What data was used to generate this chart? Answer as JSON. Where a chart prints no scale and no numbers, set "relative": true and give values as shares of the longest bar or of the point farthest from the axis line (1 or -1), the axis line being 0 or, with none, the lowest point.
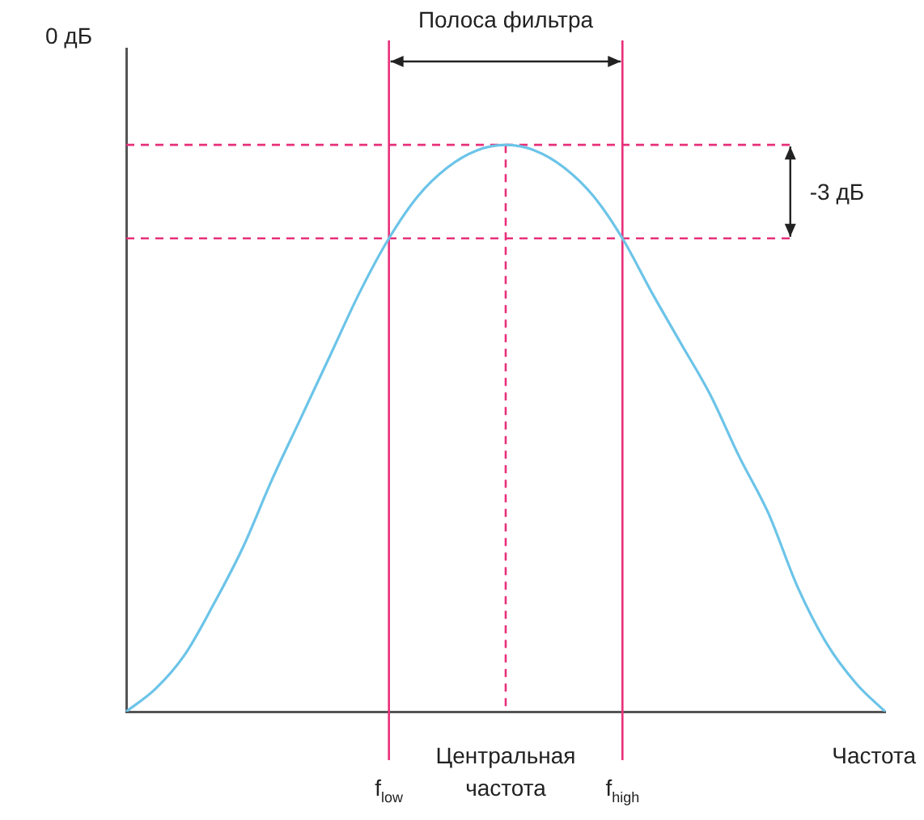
{
  "chart_data": {
    "type": "line",
    "title": "Полоса фильтра",
    "xlabel": "Частота",
    "ylabel": "0 дБ",
    "annotations": [
      "-3 дБ"
    ],
    "relative": true,
    "legend": false,
    "grid": false,
    "marker": "none",
    "tick_labels": "x",
    "categories": [
      null,
      null,
      null,
      null,
      null,
      null,
      null,
      null,
      null,
      "f$_{low}$",
      null,
      null,
      null,
      "Центральная частота",
      null,
      null,
      null,
      "f$_{high}$",
      null,
      null,
      null,
      null,
      null,
      null,
      null,
      null,
      null
    ],
    "series": [
      {
        "color": "#6cc4e8",
        "values": [
          0,
          0.04,
          0.1,
          0.19,
          0.29,
          0.41,
          0.52,
          0.63,
          0.74,
          0.835,
          0.91,
          0.96,
          0.99,
          1,
          0.99,
          0.96,
          0.91,
          0.835,
          0.74,
          0.65,
          0.56,
          0.45,
          0.35,
          0.22,
          0.12,
          0.05,
          0
        ]
      }
    ],
    "ref_lines": [
      {
        "axis": "x",
        "value": "f$_{low}$",
        "color": "#e8307a"
      },
      {
        "axis": "x",
        "value": "Центральная частота",
        "color": "#e8307a",
        "line_style": "dashed"
      },
      {
        "axis": "x",
        "value": "f$_{high}$",
        "color": "#e8307a"
      },
      {
        "axis": "y",
        "value": 1,
        "color": "#e8307a",
        "line_style": "dashed"
      },
      {
        "axis": "y",
        "value": 0.835,
        "color": "#e8307a",
        "line_style": "dashed"
      }
    ]
  }
}
